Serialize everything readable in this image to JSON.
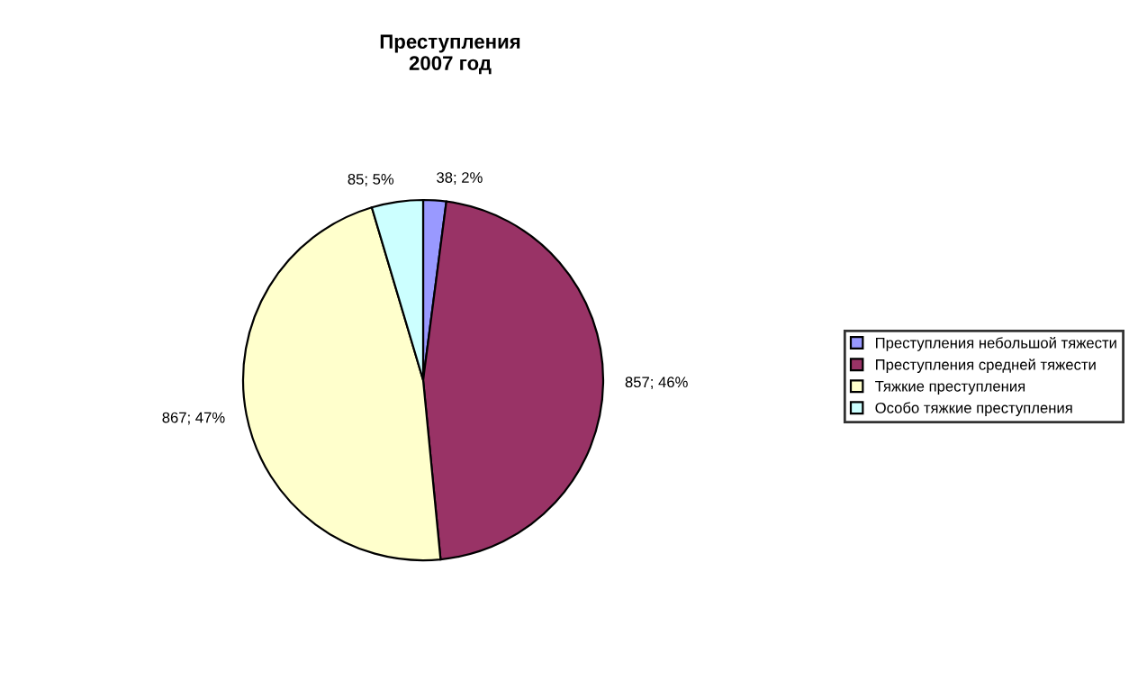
{
  "chart_data": {
    "type": "pie",
    "title": "Преступления\n2007 год",
    "categories": [
      "Преступления небольшой тяжести",
      "Преступления средней тяжести",
      "Тяжкие преступления",
      "Особо тяжкие преступления"
    ],
    "values": [
      38,
      857,
      867,
      85
    ],
    "colors": [
      "#9999ff",
      "#993366",
      "#ffffcc",
      "#ccffff"
    ],
    "value_labels": [
      "38; 2%",
      "857; 46%",
      "867; 47%",
      "85; 5%"
    ],
    "legend": "right"
  }
}
